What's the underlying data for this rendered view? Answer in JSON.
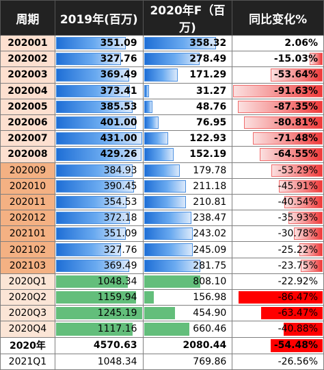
{
  "headers": [
    "周期",
    "2019年(百万)",
    "2020年F（百万)",
    "同比变化%"
  ],
  "rows": [
    {
      "period": "202001",
      "v2019": "351.09",
      "v2020": "358.32",
      "chg": "2.06%",
      "f2019": 0.814,
      "f2020": 0.83,
      "fchg": 0.0,
      "bold": true,
      "tone": "a",
      "style": "grad"
    },
    {
      "period": "202002",
      "v2019": "327.76",
      "v2020": "278.49",
      "chg": "-15.03%",
      "f2019": 0.76,
      "f2020": 0.646,
      "fchg": 0.16,
      "bold": true,
      "tone": "a",
      "style": "grad"
    },
    {
      "period": "202003",
      "v2019": "369.49",
      "v2020": "171.29",
      "chg": "-53.64%",
      "f2019": 0.857,
      "f2020": 0.397,
      "fchg": 0.585,
      "bold": true,
      "tone": "a",
      "style": "grad"
    },
    {
      "period": "202004",
      "v2019": "373.41",
      "v2020": "31.27",
      "chg": "-91.63%",
      "f2019": 0.866,
      "f2020": 0.073,
      "fchg": 1.0,
      "bold": true,
      "tone": "a",
      "style": "grad"
    },
    {
      "period": "202005",
      "v2019": "385.53",
      "v2020": "48.76",
      "chg": "-87.35%",
      "f2019": 0.894,
      "f2020": 0.113,
      "fchg": 0.953,
      "bold": true,
      "tone": "a",
      "style": "grad"
    },
    {
      "period": "202006",
      "v2019": "401.00",
      "v2020": "76.95",
      "chg": "-80.81%",
      "f2019": 0.93,
      "f2020": 0.178,
      "fchg": 0.882,
      "bold": true,
      "tone": "a",
      "style": "grad"
    },
    {
      "period": "202007",
      "v2019": "431.00",
      "v2020": "122.93",
      "chg": "-71.48%",
      "f2019": 1.0,
      "f2020": 0.285,
      "fchg": 0.78,
      "bold": true,
      "tone": "a",
      "style": "grad"
    },
    {
      "period": "202008",
      "v2019": "429.26",
      "v2020": "152.19",
      "chg": "-64.55%",
      "f2019": 0.996,
      "f2020": 0.353,
      "fchg": 0.705,
      "bold": true,
      "tone": "a",
      "style": "grad"
    },
    {
      "period": "202009",
      "v2019": "384.93",
      "v2020": "179.78",
      "chg": "-53.29%",
      "f2019": 0.893,
      "f2020": 0.417,
      "fchg": 0.58,
      "bold": false,
      "tone": "b",
      "style": "grad"
    },
    {
      "period": "202010",
      "v2019": "390.45",
      "v2020": "211.18",
      "chg": "-45.91%",
      "f2019": 0.906,
      "f2020": 0.49,
      "fchg": 0.5,
      "bold": false,
      "tone": "b",
      "style": "grad"
    },
    {
      "period": "202011",
      "v2019": "354.53",
      "v2020": "210.81",
      "chg": "-40.54%",
      "f2019": 0.823,
      "f2020": 0.489,
      "fchg": 0.44,
      "bold": false,
      "tone": "b",
      "style": "grad"
    },
    {
      "period": "202012",
      "v2019": "372.18",
      "v2020": "238.47",
      "chg": "-35.93%",
      "f2019": 0.864,
      "f2020": 0.553,
      "fchg": 0.39,
      "bold": false,
      "tone": "b",
      "style": "grad"
    },
    {
      "period": "202101",
      "v2019": "351.09",
      "v2020": "243.02",
      "chg": "-30.78%",
      "f2019": 0.814,
      "f2020": 0.564,
      "fchg": 0.335,
      "bold": false,
      "tone": "b",
      "style": "grad"
    },
    {
      "period": "202102",
      "v2019": "327.76",
      "v2020": "245.09",
      "chg": "-25.22%",
      "f2019": 0.76,
      "f2020": 0.569,
      "fchg": 0.275,
      "bold": false,
      "tone": "b",
      "style": "grad"
    },
    {
      "period": "202103",
      "v2019": "369.49",
      "v2020": "281.75",
      "chg": "-23.75%",
      "f2019": 0.857,
      "f2020": 0.654,
      "fchg": 0.26,
      "bold": false,
      "tone": "b",
      "style": "grad"
    },
    {
      "period": "2020Q1",
      "v2019": "1048.34",
      "v2020": "808.10",
      "chg": "-22.92%",
      "f2019": 0.842,
      "f2020": 0.649,
      "fchg": 0.0,
      "bold": false,
      "tone": "c",
      "style": "solid"
    },
    {
      "period": "2020Q2",
      "v2019": "1159.94",
      "v2020": "156.98",
      "chg": "-86.47%",
      "f2019": 0.931,
      "f2020": 0.126,
      "fchg": 0.94,
      "bold": false,
      "tone": "c",
      "style": "solid"
    },
    {
      "period": "2020Q3",
      "v2019": "1245.19",
      "v2020": "454.90",
      "chg": "-63.47%",
      "f2019": 1.0,
      "f2020": 0.365,
      "fchg": 0.69,
      "bold": false,
      "tone": "c",
      "style": "solid"
    },
    {
      "period": "2020Q4",
      "v2019": "1117.16",
      "v2020": "660.46",
      "chg": "-40.88%",
      "f2019": 0.897,
      "f2020": 0.53,
      "fchg": 0.445,
      "bold": false,
      "tone": "c",
      "style": "solid"
    },
    {
      "period": "2020年",
      "v2019": "4570.63",
      "v2020": "2080.44",
      "chg": "-54.48%",
      "f2019": 0.0,
      "f2020": 0.0,
      "fchg": 0.59,
      "bold": true,
      "tone": "w",
      "style": "solid"
    },
    {
      "period": "2021Q1",
      "v2019": "1048.34",
      "v2020": "769.86",
      "chg": "-26.56%",
      "f2019": 0.0,
      "f2020": 0.0,
      "fchg": 0.0,
      "bold": false,
      "tone": "w",
      "style": "solid"
    }
  ],
  "colors": {
    "header_bg": "#222222",
    "header_fg": "#ffffff",
    "blue": "#4a8fe0",
    "green": "#63be7b",
    "red": "#ff0000"
  }
}
